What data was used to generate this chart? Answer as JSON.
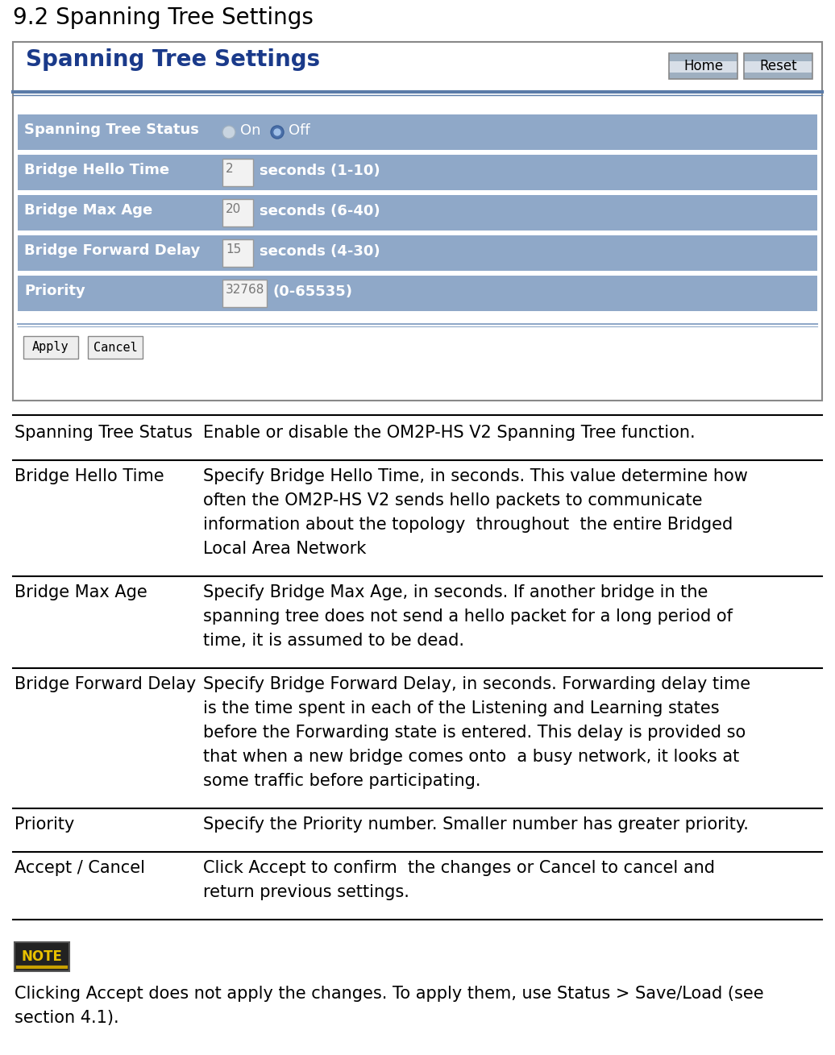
{
  "title": "9.2 Spanning Tree Settings",
  "page_bg": "#ffffff",
  "panel_title": "Spanning Tree Settings",
  "panel_title_color": "#1a3a8a",
  "row_bg": "#8fa8c8",
  "rows": [
    {
      "label": "Spanning Tree Status",
      "input_val": "",
      "suffix": "",
      "type": "radio"
    },
    {
      "label": "Bridge Hello Time",
      "input_val": "2",
      "suffix": "seconds (1-10)",
      "type": "input"
    },
    {
      "label": "Bridge Max Age",
      "input_val": "20",
      "suffix": "seconds (6-40)",
      "type": "input"
    },
    {
      "label": "Bridge Forward Delay",
      "input_val": "15",
      "suffix": "seconds (4-30)",
      "type": "input"
    },
    {
      "label": "Priority",
      "input_val": "32768",
      "suffix": "(0-65535)",
      "type": "input"
    }
  ],
  "home_reset_buttons": [
    "Home",
    "Reset"
  ],
  "apply_cancel_buttons": [
    "Apply",
    "Cancel"
  ],
  "desc_rows": [
    {
      "term": "Spanning Tree Status",
      "term_bold": false,
      "desc_lines": [
        "Enable or disable the OM2P-HS V2 Spanning Tree function."
      ]
    },
    {
      "term": "Bridge Hello Time",
      "term_bold": false,
      "desc_lines": [
        "Specify Bridge Hello Time, in seconds. This value determine how",
        "often the OM2P-HS V2 sends hello packets to communicate",
        "information about the topology  throughout  the entire Bridged",
        "Local Area Network"
      ]
    },
    {
      "term": "Bridge Max Age",
      "term_bold": false,
      "desc_lines": [
        "Specify Bridge Max Age, in seconds. If another bridge in the",
        "spanning tree does not send a hello packet for a long period of",
        "time, it is assumed to be dead."
      ]
    },
    {
      "term": "Bridge Forward Delay",
      "term_bold": false,
      "desc_lines": [
        "Specify Bridge Forward Delay, in seconds. Forwarding delay time",
        "is the time spent in each of the Listening and Learning states",
        "before the Forwarding state is entered. This delay is provided so",
        "that when a new bridge comes onto  a busy network, it looks at",
        "some traffic before participating."
      ]
    },
    {
      "term": "Priority",
      "term_bold": false,
      "desc_lines": [
        "Specify the Priority number. Smaller number has greater priority."
      ]
    },
    {
      "term": "Accept / Cancel",
      "term_bold": false,
      "desc_lines": [
        "Click Accept to confirm  the changes or Cancel to cancel and",
        "return previous settings."
      ]
    }
  ],
  "note_text_lines": [
    "Clicking Accept does not apply the changes. To apply them, use Status > Save/Load (see",
    "section 4.1)."
  ],
  "figsize": [
    10.36,
    13.09
  ],
  "dpi": 100
}
